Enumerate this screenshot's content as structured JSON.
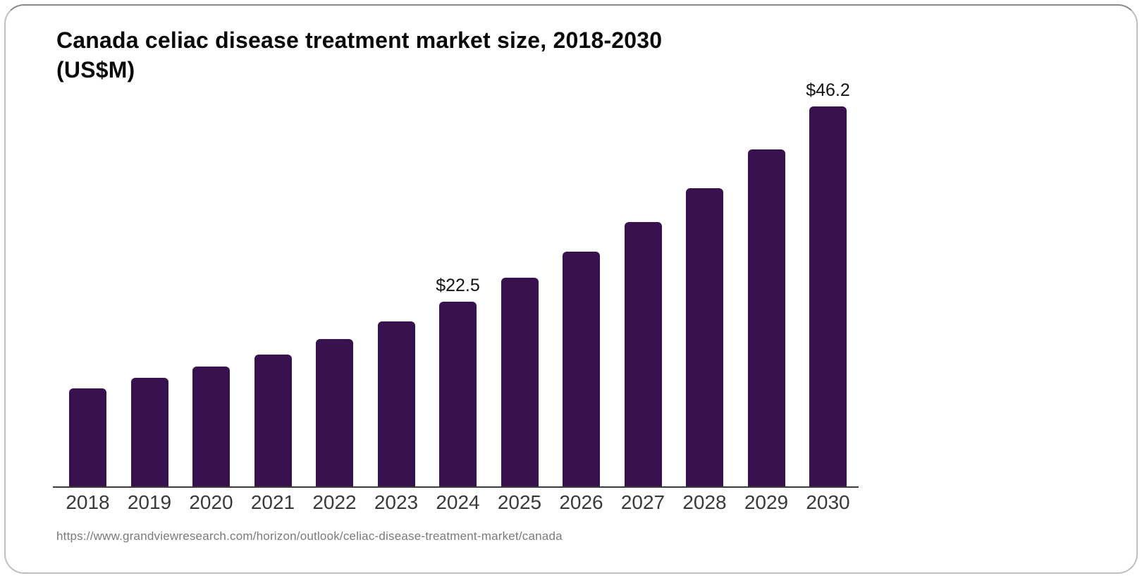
{
  "card": {
    "title_lines": [
      "Canada celiac disease treatment market size, 2018-2030",
      "(US$M)"
    ],
    "source_url": "https://www.grandviewresearch.com/horizon/outlook/celiac-disease-treatment-market/canada"
  },
  "chart_data": {
    "type": "bar",
    "title": "Canada celiac disease treatment market size, 2018-2030 (US$M)",
    "categories": [
      "2018",
      "2019",
      "2020",
      "2021",
      "2022",
      "2023",
      "2024",
      "2025",
      "2026",
      "2027",
      "2028",
      "2029",
      "2030"
    ],
    "values": [
      11.9,
      13.2,
      14.6,
      16.0,
      17.9,
      20.1,
      22.5,
      25.4,
      28.6,
      32.2,
      36.3,
      41.0,
      46.2
    ],
    "labeled_points": [
      {
        "category": "2024",
        "label": "$22.5"
      },
      {
        "category": "2030",
        "label": "$46.2"
      }
    ],
    "bar_color": "#38124E",
    "axis_color": "#3b3b3b",
    "xlabel": "",
    "ylabel": "",
    "ylim": [
      0,
      48
    ],
    "grid": false,
    "legend": false
  }
}
